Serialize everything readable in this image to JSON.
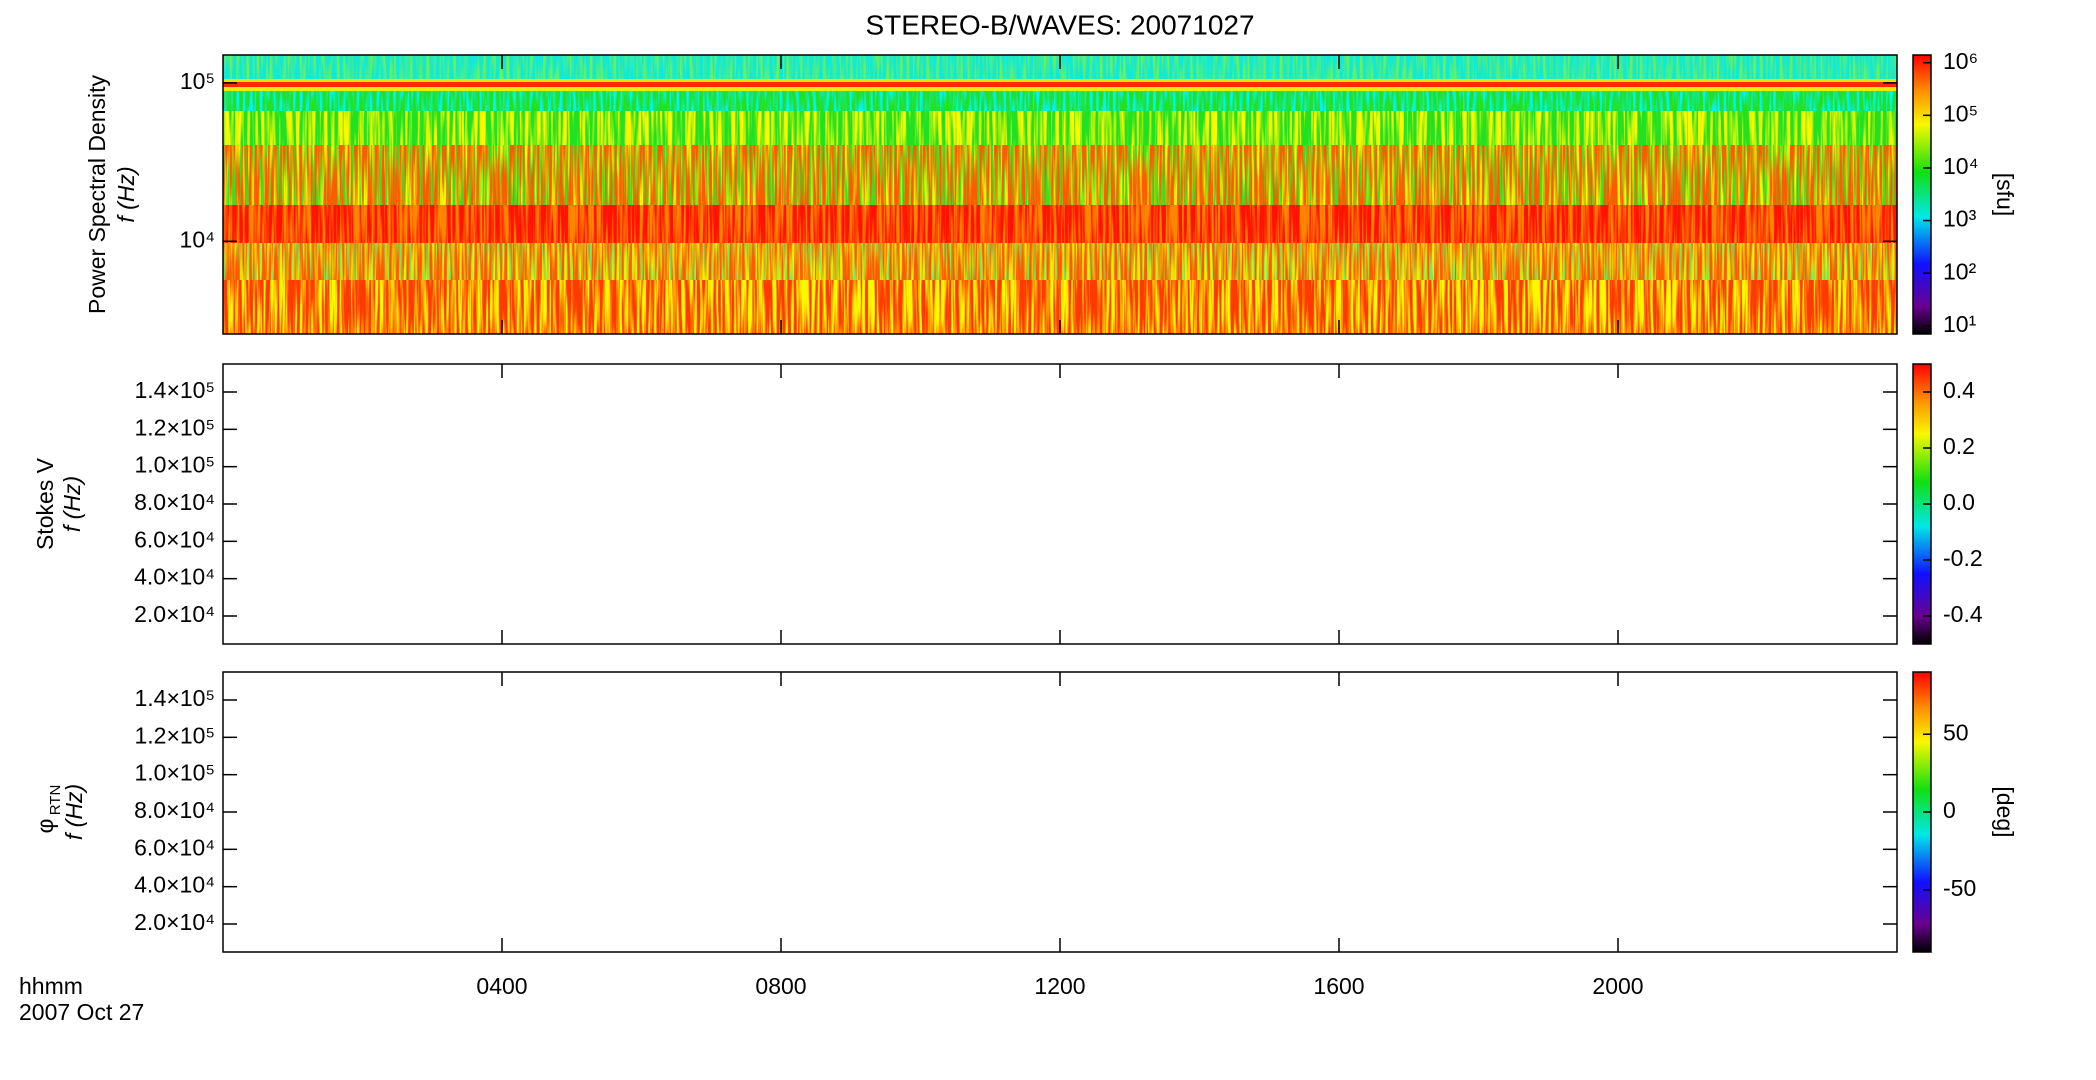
{
  "chart_data": [
    {
      "type": "spectrogram",
      "title": "STEREO-B/WAVES: 20071027",
      "ylabel": "Power Spectral Density",
      "ylabel2": "f (Hz)",
      "log_y": true,
      "ylim": [
        2600,
        150000
      ],
      "yticks": [
        {
          "value": 10000,
          "label": "10⁴"
        },
        {
          "value": 100000,
          "label": "10⁵"
        }
      ],
      "xlim": [
        0,
        24
      ],
      "colorbar": {
        "label": "[sfu]",
        "log": true,
        "lim": [
          7,
          1400000
        ],
        "ticks": [
          {
            "value": 10,
            "label": "10¹"
          },
          {
            "value": 100,
            "label": "10²"
          },
          {
            "value": 1000,
            "label": "10³"
          },
          {
            "value": 10000,
            "label": "10⁴"
          },
          {
            "value": 100000,
            "label": "10⁵"
          },
          {
            "value": 1000000,
            "label": "10⁶"
          }
        ]
      }
    },
    {
      "type": "spectrogram",
      "ylabel": "Stokes V",
      "ylabel2": "f (Hz)",
      "log_y": false,
      "ylim": [
        5000,
        155000
      ],
      "yticks": [
        {
          "value": 20000,
          "label": "2.0×10⁴"
        },
        {
          "value": 40000,
          "label": "4.0×10⁴"
        },
        {
          "value": 60000,
          "label": "6.0×10⁴"
        },
        {
          "value": 80000,
          "label": "8.0×10⁴"
        },
        {
          "value": 100000,
          "label": "1.0×10⁵"
        },
        {
          "value": 120000,
          "label": "1.2×10⁵"
        },
        {
          "value": 140000,
          "label": "1.4×10⁵"
        }
      ],
      "xlim": [
        0,
        24
      ],
      "colorbar": {
        "log": false,
        "lim": [
          -0.5,
          0.5
        ],
        "ticks": [
          -0.4,
          -0.2,
          {
            "value": 0,
            "label": "0.0"
          },
          0.2,
          0.4
        ]
      }
    },
    {
      "type": "spectrogram",
      "ylabel_symbol": "φ",
      "ylabel_subscript": "RTN",
      "ylabel2": "f (Hz)",
      "log_y": false,
      "ylim": [
        5000,
        155000
      ],
      "yticks": [
        {
          "value": 20000,
          "label": "2.0×10⁴"
        },
        {
          "value": 40000,
          "label": "4.0×10⁴"
        },
        {
          "value": 60000,
          "label": "6.0×10⁴"
        },
        {
          "value": 80000,
          "label": "8.0×10⁴"
        },
        {
          "value": 100000,
          "label": "1.0×10⁵"
        },
        {
          "value": 120000,
          "label": "1.2×10⁵"
        },
        {
          "value": 140000,
          "label": "1.4×10⁵"
        }
      ],
      "xlim": [
        0,
        24
      ],
      "xticks": [
        {
          "value": 4,
          "label": "0400"
        },
        {
          "value": 8,
          "label": "0800"
        },
        {
          "value": 12,
          "label": "1200"
        },
        {
          "value": 16,
          "label": "1600"
        },
        {
          "value": 20,
          "label": "2000"
        }
      ],
      "colorbar": {
        "label": "[deg]",
        "log": false,
        "lim": [
          -90,
          90
        ],
        "ticks": [
          -50,
          0,
          50
        ]
      }
    }
  ],
  "time_label": "hhmm",
  "date_label": "2007 Oct 27"
}
